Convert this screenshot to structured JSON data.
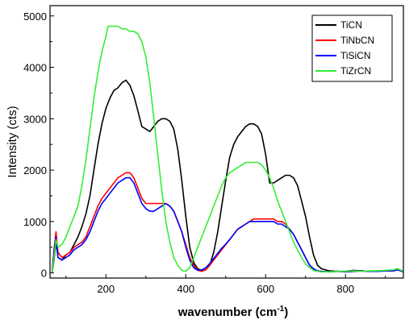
{
  "chart_data": {
    "type": "line",
    "title": "",
    "xlabel": "wavenumber",
    "xlabel_unit_base": "cm",
    "xlabel_unit_exp": "-1",
    "ylabel": "Intensity (cts)",
    "xlim": [
      60,
      945
    ],
    "ylim": [
      -100,
      5200
    ],
    "xticks": [
      200,
      400,
      600,
      800
    ],
    "yticks": [
      0,
      1000,
      2000,
      3000,
      4000,
      5000
    ],
    "grid": false,
    "legend_position": "top-right",
    "series": [
      {
        "name": "TiCN",
        "color": "#000000",
        "x": [
          65,
          70,
          75,
          80,
          90,
          100,
          110,
          120,
          130,
          140,
          150,
          160,
          170,
          180,
          190,
          200,
          210,
          220,
          230,
          240,
          250,
          260,
          270,
          280,
          290,
          300,
          310,
          320,
          330,
          340,
          350,
          360,
          370,
          380,
          390,
          400,
          410,
          420,
          430,
          440,
          450,
          460,
          470,
          480,
          490,
          500,
          510,
          520,
          530,
          540,
          550,
          560,
          570,
          580,
          590,
          600,
          610,
          620,
          630,
          640,
          650,
          660,
          670,
          680,
          690,
          700,
          710,
          720,
          730,
          740,
          760,
          780,
          800,
          820,
          840,
          860,
          880,
          900,
          920,
          930,
          945
        ],
        "y": [
          0,
          250,
          600,
          300,
          250,
          350,
          400,
          550,
          700,
          900,
          1150,
          1500,
          2000,
          2500,
          2900,
          3200,
          3400,
          3550,
          3600,
          3700,
          3750,
          3650,
          3450,
          3150,
          2850,
          2800,
          2750,
          2850,
          2950,
          3000,
          3000,
          2950,
          2800,
          2400,
          1800,
          1100,
          500,
          200,
          80,
          50,
          60,
          150,
          400,
          800,
          1300,
          1800,
          2250,
          2500,
          2650,
          2750,
          2850,
          2900,
          2900,
          2850,
          2700,
          2300,
          1750,
          1750,
          1800,
          1850,
          1900,
          1900,
          1850,
          1700,
          1400,
          1100,
          700,
          350,
          150,
          80,
          40,
          30,
          30,
          50,
          40,
          30,
          40,
          40,
          50,
          80,
          30
        ]
      },
      {
        "name": "TiNbCN",
        "color": "#ff0000",
        "x": [
          65,
          70,
          75,
          80,
          90,
          100,
          110,
          120,
          130,
          140,
          150,
          160,
          170,
          180,
          190,
          200,
          210,
          220,
          230,
          240,
          250,
          260,
          270,
          280,
          290,
          300,
          310,
          320,
          330,
          340,
          350,
          360,
          370,
          380,
          390,
          400,
          410,
          420,
          430,
          440,
          450,
          460,
          470,
          480,
          490,
          500,
          510,
          520,
          530,
          540,
          550,
          560,
          570,
          580,
          590,
          600,
          610,
          620,
          630,
          640,
          650,
          660,
          670,
          680,
          690,
          700,
          710,
          720,
          730,
          740,
          760,
          780,
          800,
          820,
          840,
          860,
          880,
          900,
          920,
          930,
          945
        ],
        "y": [
          0,
          450,
          800,
          400,
          300,
          350,
          400,
          500,
          550,
          600,
          700,
          900,
          1100,
          1300,
          1450,
          1550,
          1650,
          1750,
          1850,
          1900,
          1950,
          1950,
          1850,
          1650,
          1450,
          1350,
          1350,
          1350,
          1350,
          1350,
          1350,
          1300,
          1200,
          1000,
          800,
          550,
          300,
          150,
          50,
          30,
          60,
          150,
          250,
          350,
          450,
          550,
          650,
          750,
          850,
          900,
          950,
          1000,
          1050,
          1050,
          1050,
          1050,
          1050,
          1050,
          1000,
          1000,
          950,
          850,
          750,
          600,
          450,
          300,
          150,
          80,
          40,
          30,
          20,
          30,
          20,
          30,
          40,
          30,
          30,
          40,
          40,
          60,
          20
        ]
      },
      {
        "name": "TiSiCN",
        "color": "#0000ff",
        "x": [
          65,
          70,
          75,
          80,
          90,
          100,
          110,
          120,
          130,
          140,
          150,
          160,
          170,
          180,
          190,
          200,
          210,
          220,
          230,
          240,
          250,
          260,
          270,
          280,
          290,
          300,
          310,
          320,
          330,
          340,
          350,
          360,
          370,
          380,
          390,
          400,
          410,
          420,
          430,
          440,
          450,
          460,
          470,
          480,
          490,
          500,
          510,
          520,
          530,
          540,
          550,
          560,
          570,
          580,
          590,
          600,
          610,
          620,
          630,
          640,
          650,
          660,
          670,
          680,
          690,
          700,
          710,
          720,
          730,
          740,
          760,
          780,
          800,
          820,
          840,
          860,
          880,
          900,
          920,
          930,
          945
        ],
        "y": [
          0,
          400,
          700,
          300,
          250,
          300,
          350,
          450,
          500,
          550,
          650,
          800,
          1000,
          1200,
          1350,
          1450,
          1550,
          1650,
          1750,
          1800,
          1850,
          1850,
          1750,
          1550,
          1350,
          1250,
          1200,
          1200,
          1250,
          1300,
          1350,
          1300,
          1200,
          1000,
          800,
          500,
          250,
          100,
          50,
          60,
          100,
          180,
          280,
          380,
          480,
          560,
          650,
          750,
          850,
          900,
          950,
          1000,
          1000,
          1000,
          1000,
          1000,
          1000,
          1000,
          950,
          950,
          900,
          850,
          750,
          600,
          450,
          300,
          150,
          80,
          40,
          30,
          20,
          30,
          20,
          30,
          40,
          30,
          30,
          40,
          40,
          60,
          20
        ]
      },
      {
        "name": "TiZrCN",
        "color": "#33ee33",
        "x": [
          65,
          70,
          75,
          80,
          90,
          100,
          110,
          120,
          130,
          140,
          150,
          160,
          170,
          180,
          190,
          200,
          205,
          210,
          220,
          230,
          240,
          250,
          260,
          270,
          280,
          290,
          300,
          310,
          320,
          330,
          340,
          350,
          360,
          370,
          380,
          390,
          400,
          410,
          420,
          430,
          440,
          450,
          460,
          470,
          480,
          490,
          500,
          510,
          520,
          530,
          540,
          550,
          560,
          570,
          580,
          590,
          600,
          610,
          620,
          630,
          640,
          650,
          660,
          670,
          680,
          690,
          700,
          710,
          720,
          730,
          740,
          760,
          780,
          800,
          820,
          840,
          860,
          880,
          900,
          920,
          930,
          945
        ],
        "y": [
          0,
          300,
          650,
          500,
          550,
          700,
          900,
          1100,
          1300,
          1700,
          2200,
          2800,
          3400,
          3900,
          4300,
          4600,
          4800,
          4800,
          4800,
          4800,
          4750,
          4750,
          4700,
          4700,
          4650,
          4500,
          4200,
          3700,
          3000,
          2300,
          1600,
          1000,
          600,
          300,
          150,
          50,
          30,
          100,
          300,
          500,
          700,
          900,
          1100,
          1300,
          1500,
          1700,
          1850,
          1950,
          2000,
          2050,
          2100,
          2150,
          2150,
          2150,
          2150,
          2100,
          2000,
          1850,
          1650,
          1400,
          1200,
          1000,
          800,
          600,
          450,
          300,
          180,
          100,
          50,
          30,
          20,
          20,
          30,
          30,
          40,
          30,
          40,
          40,
          50,
          60,
          80,
          30
        ]
      }
    ]
  }
}
